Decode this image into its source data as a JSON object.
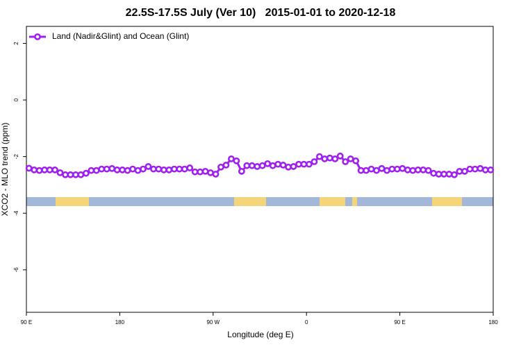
{
  "chart_data": {
    "type": "line",
    "title": "22.5S-17.5S July (Ver 10)   2015-01-01 to 2020-12-18",
    "x_label": "Longitude (deg E)",
    "y_label": "XCO2 - MLO trend (ppm)",
    "x": [
      92.5,
      97.5,
      102.5,
      107.5,
      112.5,
      117.5,
      122.5,
      127.5,
      132.5,
      137.5,
      142.5,
      147.5,
      152.5,
      157.5,
      162.5,
      167.5,
      172.5,
      177.5,
      182.5,
      187.5,
      192.5,
      197.5,
      202.5,
      207.5,
      212.5,
      217.5,
      222.5,
      227.5,
      232.5,
      237.5,
      242.5,
      247.5,
      252.5,
      257.5,
      262.5,
      267.5,
      272.5,
      277.5,
      282.5,
      287.5,
      292.5,
      297.5,
      302.5,
      307.5,
      312.5,
      317.5,
      322.5,
      327.5,
      332.5,
      337.5,
      342.5,
      347.5,
      352.5,
      357.5,
      362.5,
      367.5,
      372.5,
      377.5,
      382.5,
      387.5,
      392.5,
      397.5,
      402.5,
      407.5,
      412.5,
      417.5,
      422.5,
      427.5,
      432.5,
      437.5,
      442.5,
      447.5,
      452.5,
      457.5,
      462.5,
      467.5,
      472.5,
      477.5,
      482.5,
      487.5,
      492.5,
      497.5,
      502.5,
      507.5,
      512.5,
      517.5,
      522.5,
      527.5,
      532.5,
      537.5
    ],
    "series": [
      {
        "name": "Land (Nadir&Glint) and Ocean (Glint)",
        "color": "#a020f0",
        "values": [
          -2.41,
          -2.47,
          -2.49,
          -2.47,
          -2.47,
          -2.47,
          -2.57,
          -2.64,
          -2.64,
          -2.64,
          -2.64,
          -2.59,
          -2.49,
          -2.49,
          -2.44,
          -2.44,
          -2.42,
          -2.47,
          -2.47,
          -2.49,
          -2.44,
          -2.49,
          -2.44,
          -2.35,
          -2.44,
          -2.44,
          -2.47,
          -2.47,
          -2.44,
          -2.44,
          -2.44,
          -2.4,
          -2.54,
          -2.54,
          -2.52,
          -2.57,
          -2.62,
          -2.37,
          -2.3,
          -2.08,
          -2.15,
          -2.52,
          -2.32,
          -2.32,
          -2.35,
          -2.32,
          -2.25,
          -2.32,
          -2.27,
          -2.3,
          -2.37,
          -2.35,
          -2.27,
          -2.27,
          -2.27,
          -2.18,
          -2.0,
          -2.08,
          -2.05,
          -2.08,
          -1.98,
          -2.18,
          -2.08,
          -2.15,
          -2.49,
          -2.49,
          -2.44,
          -2.49,
          -2.42,
          -2.49,
          -2.44,
          -2.44,
          -2.42,
          -2.47,
          -2.49,
          -2.47,
          -2.47,
          -2.49,
          -2.59,
          -2.62,
          -2.62,
          -2.62,
          -2.64,
          -2.52,
          -2.52,
          -2.44,
          -2.44,
          -2.42,
          -2.47,
          -2.47
        ]
      }
    ],
    "xlim": [
      90,
      540
    ],
    "xticks": [
      {
        "value": 90,
        "label": "90 E"
      },
      {
        "value": 180,
        "label": "180"
      },
      {
        "value": 270,
        "label": "90 W"
      },
      {
        "value": 360,
        "label": "0"
      },
      {
        "value": 450,
        "label": "90 E"
      },
      {
        "value": 540,
        "label": "180"
      }
    ],
    "ylim": [
      -7.5,
      2.6
    ],
    "yticks": [
      2,
      0,
      -2,
      -4,
      -6
    ],
    "legend": "top-left"
  }
}
